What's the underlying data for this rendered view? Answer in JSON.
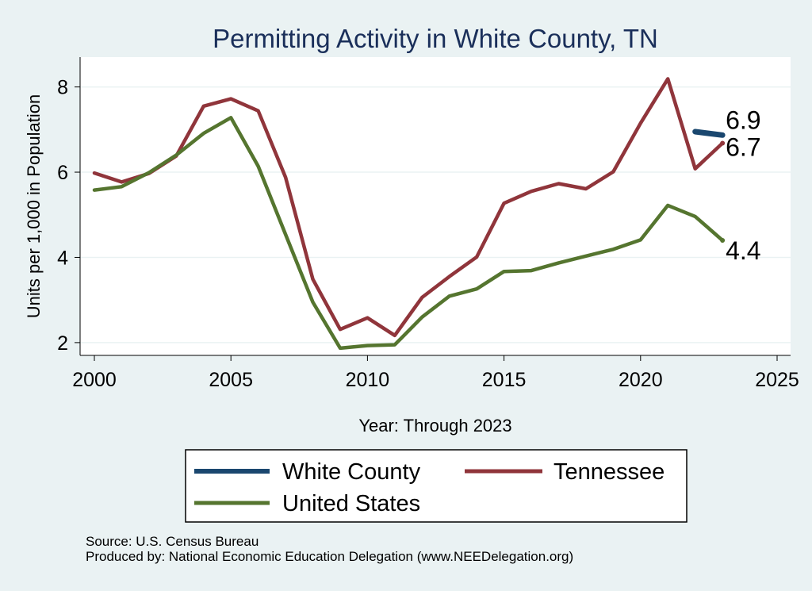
{
  "chart_data": {
    "type": "line",
    "title": "Permitting Activity in White County, TN",
    "xlabel": "Year: Through 2023",
    "ylabel": "Units per 1,000 in Population",
    "xlim": [
      2000,
      2025
    ],
    "ylim": [
      1.7,
      8.7
    ],
    "xticks": [
      2000,
      2005,
      2010,
      2015,
      2020,
      2025
    ],
    "yticks": [
      2,
      4,
      6,
      8
    ],
    "grid": true,
    "series": [
      {
        "name": "White County",
        "color": "#1a476f",
        "x": [
          2022,
          2023
        ],
        "values": [
          6.95,
          6.87
        ],
        "end_label": "6.9"
      },
      {
        "name": "Tennessee",
        "color": "#90353b",
        "x": [
          2000,
          2001,
          2002,
          2003,
          2004,
          2005,
          2006,
          2007,
          2008,
          2009,
          2010,
          2011,
          2012,
          2013,
          2014,
          2015,
          2016,
          2017,
          2018,
          2019,
          2020,
          2021,
          2022,
          2023
        ],
        "values": [
          5.98,
          5.77,
          5.97,
          6.38,
          7.55,
          7.72,
          7.44,
          5.88,
          3.49,
          2.31,
          2.58,
          2.17,
          3.06,
          3.55,
          4.01,
          5.27,
          5.55,
          5.73,
          5.61,
          6.01,
          7.15,
          8.19,
          6.08,
          6.68
        ],
        "end_label": "6.7"
      },
      {
        "name": "United States",
        "color": "#55752f",
        "x": [
          2000,
          2001,
          2002,
          2003,
          2004,
          2005,
          2006,
          2007,
          2008,
          2009,
          2010,
          2011,
          2012,
          2013,
          2014,
          2015,
          2016,
          2017,
          2018,
          2019,
          2020,
          2021,
          2022,
          2023
        ],
        "values": [
          5.58,
          5.66,
          5.99,
          6.4,
          6.91,
          7.28,
          6.14,
          4.54,
          2.95,
          1.87,
          1.93,
          1.95,
          2.6,
          3.09,
          3.26,
          3.67,
          3.69,
          3.87,
          4.03,
          4.19,
          4.41,
          5.22,
          4.96,
          4.4
        ],
        "end_label": "4.4"
      }
    ],
    "legend": {
      "placement": "bottom",
      "entries": [
        "White County",
        "Tennessee",
        "United States"
      ]
    }
  },
  "notes": {
    "source": "Source: U.S. Census Bureau",
    "produced_by": "Produced by: National Economic Education Delegation (www.NEEDelegation.org)"
  }
}
